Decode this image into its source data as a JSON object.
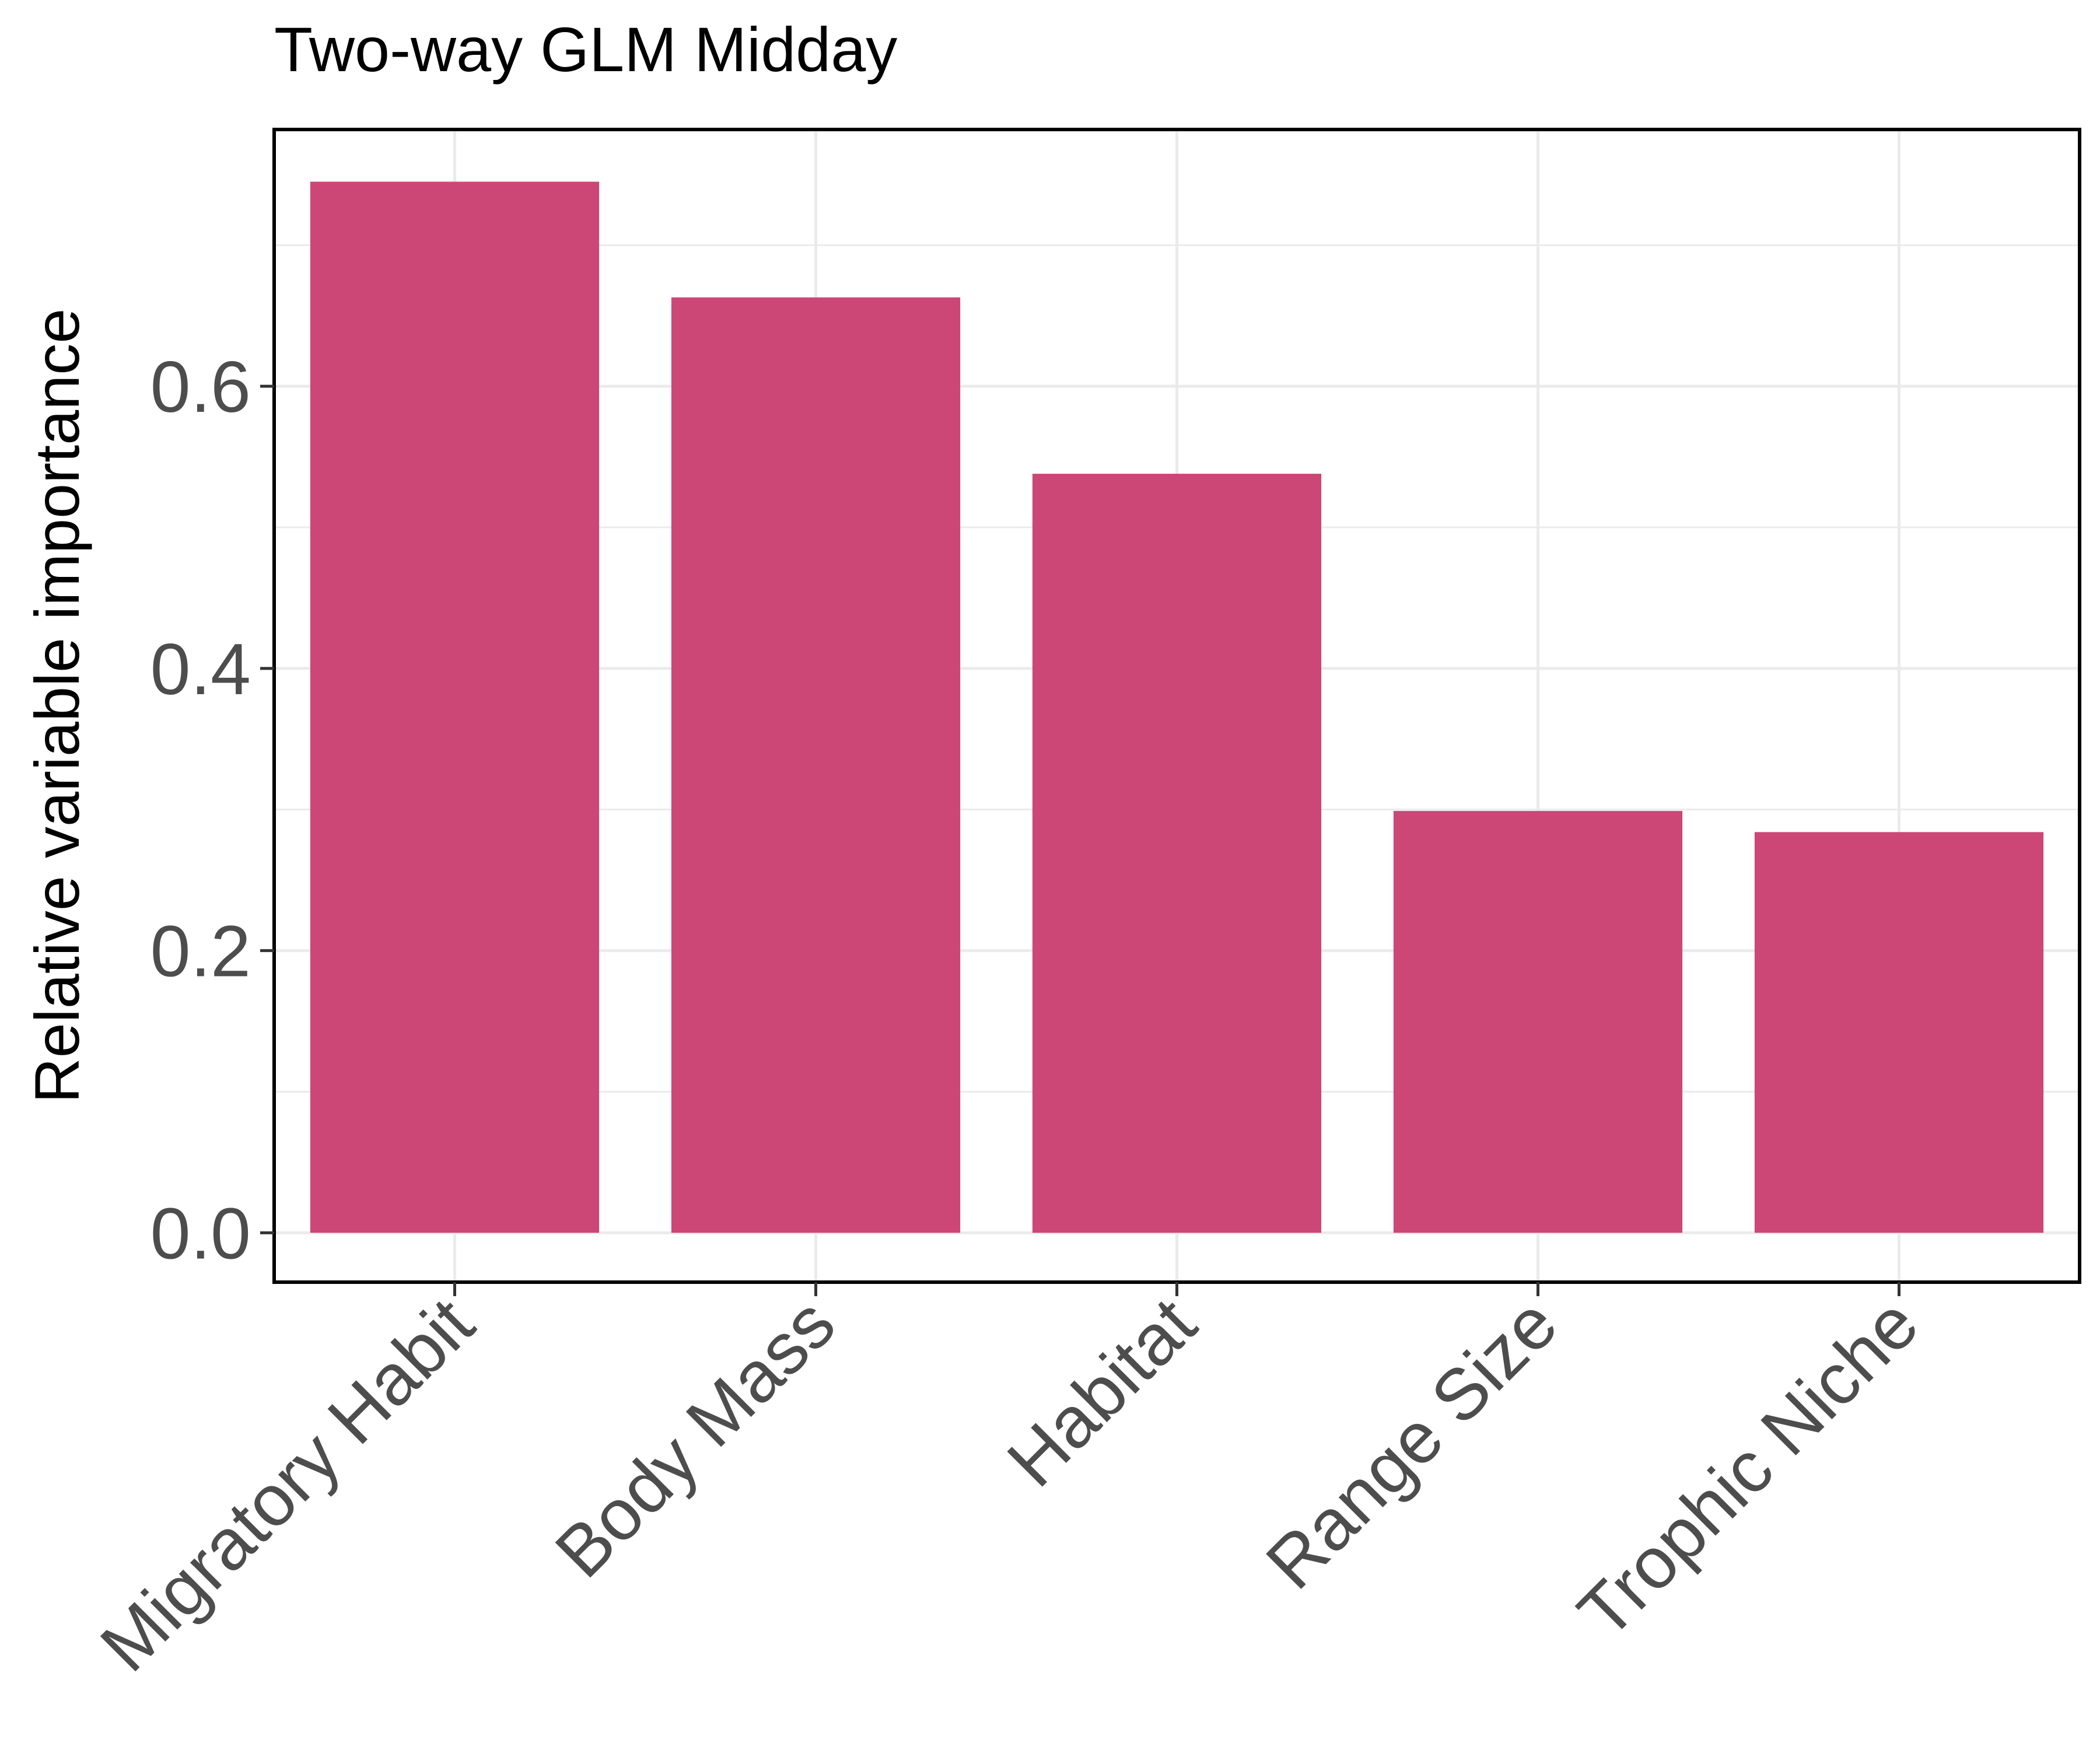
{
  "chart_data": {
    "type": "bar",
    "title": "Two-way GLM Midday",
    "xlabel": "",
    "ylabel": "Relative variable importance",
    "categories": [
      "Migratory Habit",
      "Body Mass",
      "Habitat",
      "Range Size",
      "Trophic Niche"
    ],
    "values": [
      0.745,
      0.663,
      0.538,
      0.299,
      0.284
    ],
    "ylim": [
      -0.035,
      0.782
    ],
    "yticks": [
      "0.0",
      "0.2",
      "0.4",
      "0.6"
    ],
    "minor_grid": [
      0.1,
      0.3,
      0.5,
      0.7
    ],
    "grid": true,
    "legend": "none",
    "bar_color": "#cc4775",
    "grid_color": "#ebebeb",
    "frame_color": "#000000",
    "tick_label_color": "#4d4d4d"
  }
}
